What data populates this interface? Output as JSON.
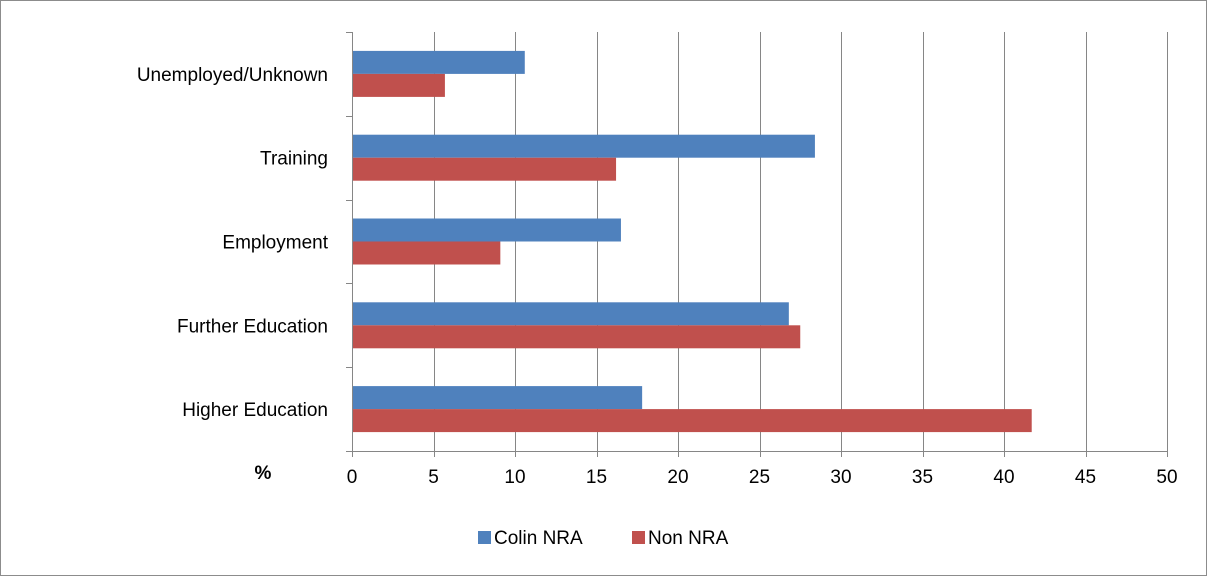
{
  "chart_data": {
    "type": "bar",
    "orientation": "horizontal",
    "title": "",
    "xlabel": "%",
    "ylabel": "",
    "categories": [
      "Higher Education",
      "Further Education",
      "Employment",
      "Training",
      "Unemployed/Unknown"
    ],
    "series": [
      {
        "name": "Colin NRA",
        "color": "#4F81BD",
        "values": [
          17.8,
          26.8,
          16.5,
          28.4,
          10.6
        ]
      },
      {
        "name": "Non NRA",
        "color": "#C0504D",
        "values": [
          41.7,
          27.5,
          9.1,
          16.2,
          5.7
        ]
      }
    ],
    "xlim": [
      0,
      50
    ],
    "xticks": [
      0,
      5,
      10,
      15,
      20,
      25,
      30,
      35,
      40,
      45,
      50
    ],
    "grid": "vertical",
    "legend": "bottom"
  }
}
